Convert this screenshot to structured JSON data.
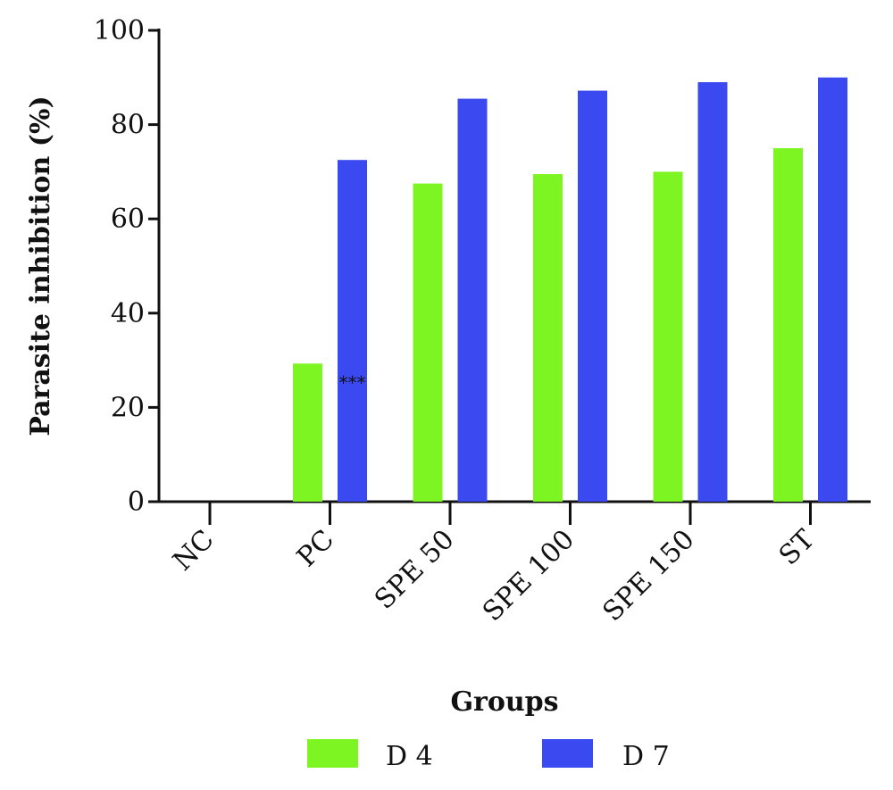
{
  "chart_data": {
    "type": "bar",
    "categories": [
      "NC",
      "PC",
      "SPE 50",
      "SPE 100",
      "SPE 150",
      "ST"
    ],
    "series": [
      {
        "name": "D 4",
        "color": "#7cf522",
        "values": [
          0,
          29.3,
          67.5,
          69.5,
          70,
          75
        ]
      },
      {
        "name": "D 7",
        "color": "#3a49f0",
        "values": [
          0,
          72.5,
          85.5,
          87.2,
          89,
          90
        ]
      }
    ],
    "ylim": [
      0,
      100
    ],
    "yticks": [
      0,
      20,
      40,
      60,
      80,
      100
    ],
    "xlabel": "Groups",
    "ylabel": "Parasite inhibition (%)",
    "legend_position": "bottom",
    "grid": false,
    "annotations": [
      {
        "text": "***",
        "category": "PC",
        "series": "D 7",
        "y": 26.5
      }
    ]
  }
}
